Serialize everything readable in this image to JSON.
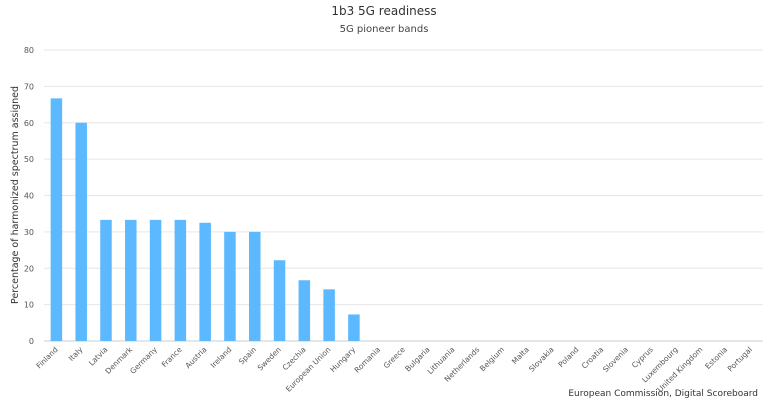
{
  "chart_data": {
    "type": "bar",
    "title": "1b3 5G readiness",
    "subtitle": "5G pioneer bands",
    "xlabel": "",
    "ylabel": "Percentage of harmonized spectrum assigned",
    "ylim": [
      0,
      80
    ],
    "yticks": [
      0,
      10,
      20,
      30,
      40,
      50,
      60,
      70,
      80
    ],
    "grid": true,
    "bar_color": "#5cb8ff",
    "categories": [
      "Finland",
      "Italy",
      "Latvia",
      "Denmark",
      "Germany",
      "France",
      "Austria",
      "Ireland",
      "Spain",
      "Sweden",
      "Czechia",
      "European Union",
      "Hungary",
      "Romania",
      "Greece",
      "Bulgaria",
      "Lithuania",
      "Netherlands",
      "Belgium",
      "Malta",
      "Slovakia",
      "Poland",
      "Croatia",
      "Slovenia",
      "Cyprus",
      "Luxembourg",
      "United Kingdom",
      "Estonia",
      "Portugal"
    ],
    "values": [
      66.7,
      60,
      33.3,
      33.3,
      33.3,
      33.3,
      32.5,
      30,
      30,
      22.2,
      16.7,
      14.2,
      7.3,
      0,
      0,
      0,
      0,
      0,
      0,
      0,
      0,
      0,
      0,
      0,
      0,
      0,
      0,
      0,
      0
    ]
  },
  "credits": "European Commission, Digital Scoreboard"
}
